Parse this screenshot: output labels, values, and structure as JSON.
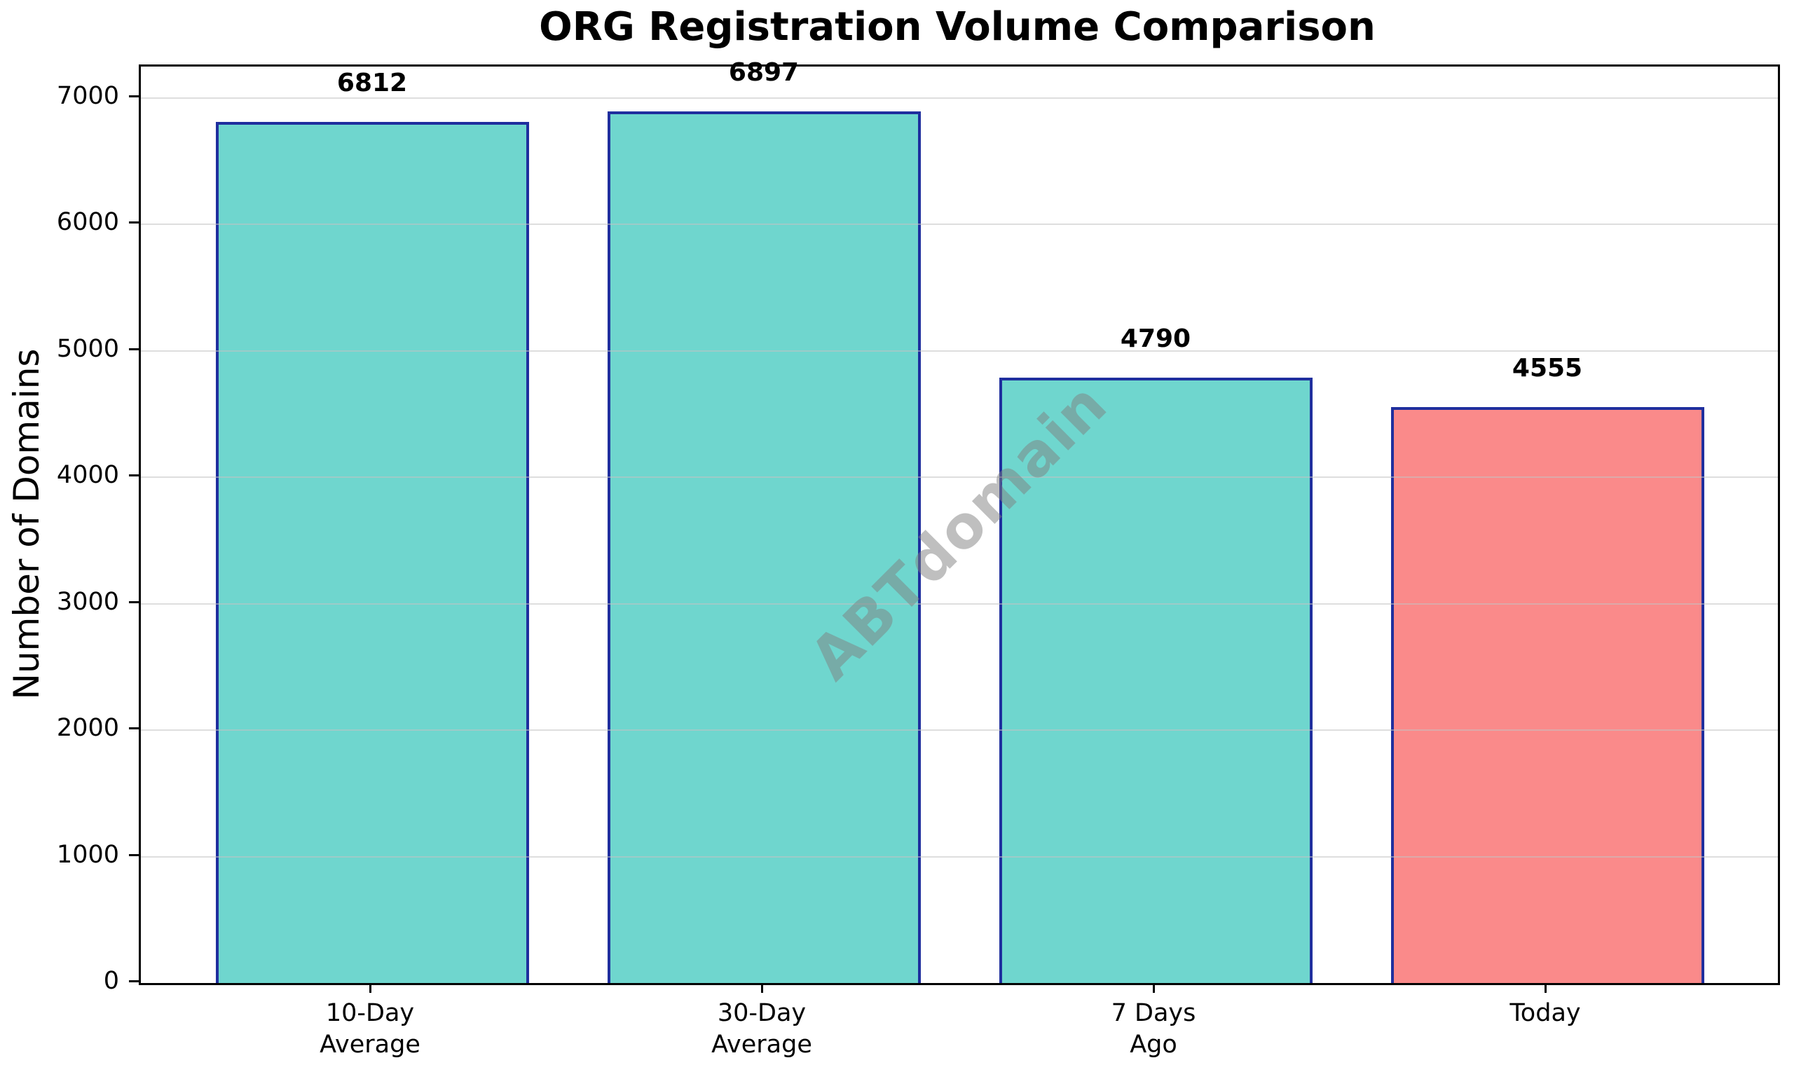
{
  "chart_data": {
    "type": "bar",
    "title": "ORG Registration Volume Comparison",
    "ylabel": "Number of Domains",
    "xlabel": "",
    "categories": [
      "10-Day\nAverage",
      "30-Day\nAverage",
      "7 Days\nAgo",
      "Today"
    ],
    "values": [
      6812,
      6897,
      4790,
      4555
    ],
    "value_labels": [
      "6812",
      "6897",
      "4790",
      "4555"
    ],
    "bar_colors": [
      "#6fd6ce",
      "#6fd6ce",
      "#6fd6ce",
      "#fa8a8a"
    ],
    "bar_edge_color": "#1f2f9e",
    "yticks": [
      0,
      1000,
      2000,
      3000,
      4000,
      5000,
      6000,
      7000
    ],
    "ylim": [
      0,
      7250
    ],
    "grid": true,
    "grid_color": "#c2c2c2",
    "legend": "none",
    "watermark": "ABTdomain"
  }
}
